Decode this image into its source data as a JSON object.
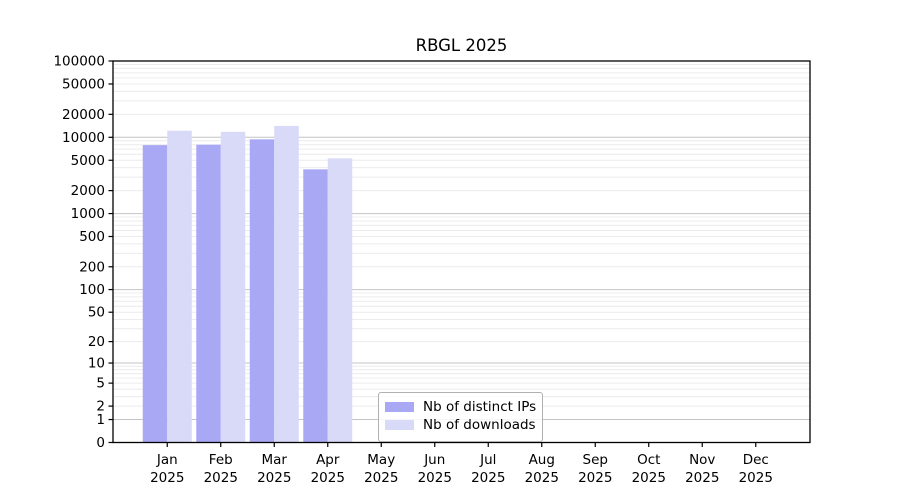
{
  "chart_data": {
    "type": "bar",
    "title": "RBGL 2025",
    "year_line": "2025",
    "categories": [
      "Jan",
      "Feb",
      "Mar",
      "Apr",
      "May",
      "Jun",
      "Jul",
      "Aug",
      "Sep",
      "Oct",
      "Nov",
      "Dec"
    ],
    "series": [
      {
        "name": "Nb of distinct IPs",
        "color": "#a8a8f5",
        "values": [
          7900,
          8000,
          9400,
          3800,
          null,
          null,
          null,
          null,
          null,
          null,
          null,
          null
        ]
      },
      {
        "name": "Nb of downloads",
        "color": "#d9d9f8",
        "values": [
          12200,
          11800,
          14100,
          5300,
          null,
          null,
          null,
          null,
          null,
          null,
          null,
          null
        ]
      }
    ],
    "y_axis": {
      "scale": "log10(value+1)",
      "ylim": [
        0,
        100000
      ],
      "ticks": [
        0,
        1,
        2,
        5,
        10,
        20,
        50,
        100,
        200,
        500,
        1000,
        2000,
        5000,
        10000,
        20000,
        50000,
        100000
      ]
    },
    "grid": {
      "on": true,
      "major_color": "#c4c4c4",
      "minor_color": "#ececec"
    },
    "legend": {
      "border_color": "#b0b0b0"
    },
    "colors": {
      "spine": "#000000",
      "text": "#000000",
      "background": "#ffffff"
    }
  }
}
